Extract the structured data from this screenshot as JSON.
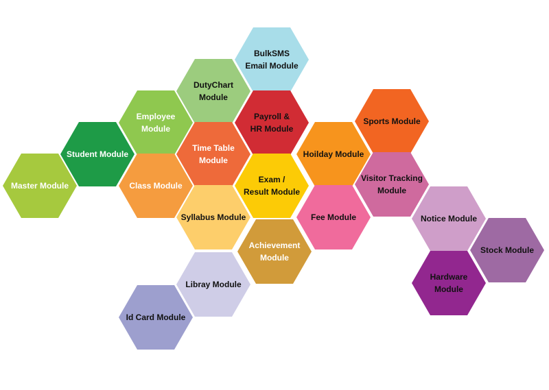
{
  "modules": {
    "master": {
      "label": "Master Module",
      "color": "#a6c93e"
    },
    "student": {
      "label": "Student Module",
      "color": "#1e9b47"
    },
    "employee": {
      "label": "Employee Module",
      "color": "#8fc84f"
    },
    "class": {
      "label": "Class Module",
      "color": "#f59c3f"
    },
    "dutychart": {
      "label": "DutyChart\nModule",
      "color": "#9ccc7e"
    },
    "timetable": {
      "label": "Time Table\nModule",
      "color": "#ee6a3a"
    },
    "syllabus": {
      "label": "Syllabus Module",
      "color": "#fdce6b"
    },
    "libray": {
      "label": "Libray Module",
      "color": "#cfcde7"
    },
    "idcard": {
      "label": "Id Card Module",
      "color": "#9d9fce"
    },
    "bulksms": {
      "label": "BulkSMS\nEmail Module",
      "color": "#a8dde9"
    },
    "payroll": {
      "label": "Payroll &\nHR Module",
      "color": "#d12c34"
    },
    "exam": {
      "label": "Exam /\nResult Module",
      "color": "#fccb06"
    },
    "achievement": {
      "label": "Achievement\nModule",
      "color": "#d19b3a"
    },
    "holiday": {
      "label": "Hoilday Module",
      "color": "#f7941d"
    },
    "fee": {
      "label": "Fee Module",
      "color": "#f06b9c"
    },
    "sports": {
      "label": "Sports Module",
      "color": "#f26522"
    },
    "visitor": {
      "label": "Visitor Tracking\nModule",
      "color": "#cf6a9e"
    },
    "notice": {
      "label": "Notice Module",
      "color": "#cf9ec9"
    },
    "stock": {
      "label": "Stock Module",
      "color": "#9e6aa3"
    },
    "hardware": {
      "label": "Hardware\nModule",
      "color": "#92278f"
    }
  }
}
